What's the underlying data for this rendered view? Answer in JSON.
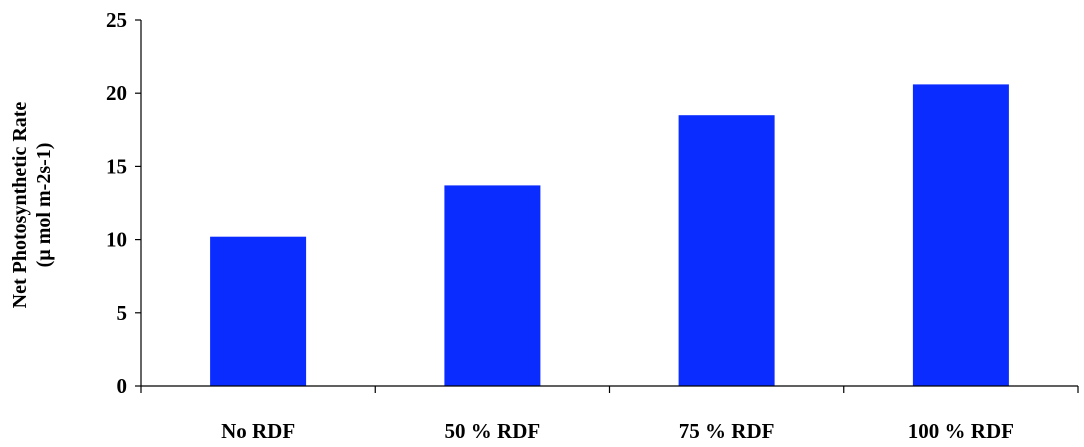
{
  "chart_data": {
    "type": "bar",
    "title": "",
    "xlabel": "",
    "ylabel_lines": [
      "Net Photosynthetic Rate",
      "(µ mol m-2s-1)"
    ],
    "categories": [
      "No RDF",
      "50 % RDF",
      "75 % RDF",
      "100 % RDF"
    ],
    "values": [
      10.2,
      13.7,
      18.5,
      20.6
    ],
    "ylim": [
      0,
      25
    ],
    "yticks": [
      0,
      5,
      10,
      15,
      20,
      25
    ],
    "grid": false,
    "legend": "none",
    "bar_color": "#0a2cff"
  }
}
